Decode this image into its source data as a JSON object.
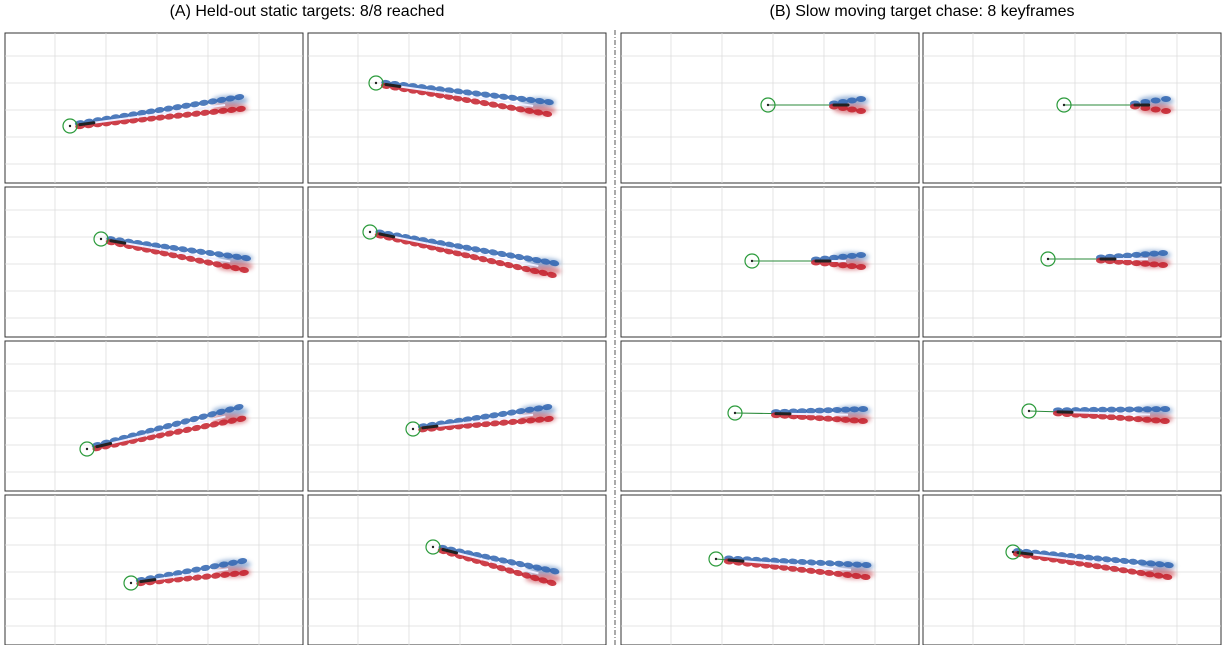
{
  "panels": [
    {
      "title": "(A) Held-out static targets: 8/8 reached"
    },
    {
      "title": "(B) Slow moving target chase: 8 keyframes"
    }
  ]
}
